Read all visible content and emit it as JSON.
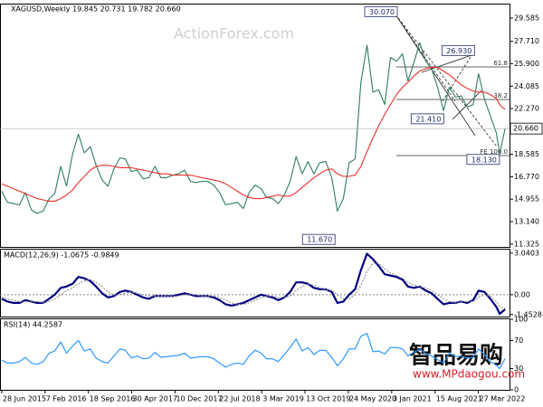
{
  "chart_data": [
    {
      "type": "line",
      "title": "XAGUSD,Weekly  19.845 20.731 19.782 20.660",
      "watermark": "ActionForex.com",
      "x": [
        "2015-06-28",
        "2015-07-28",
        "2015-08-28",
        "2015-09-28",
        "2015-10-28",
        "2015-11-28",
        "2015-12-28",
        "2016-01-28",
        "2016-02-28",
        "2016-03-28",
        "2016-04-28",
        "2016-05-28",
        "2016-06-28",
        "2016-07-28",
        "2016-08-28",
        "2016-09-28",
        "2016-10-28",
        "2016-11-28",
        "2016-12-28",
        "2017-01-28",
        "2017-02-28",
        "2017-03-28",
        "2017-04-28",
        "2017-05-28",
        "2017-06-28",
        "2017-07-28",
        "2017-08-28",
        "2017-09-28",
        "2017-10-28",
        "2017-11-28",
        "2017-12-28",
        "2018-01-28",
        "2018-02-28",
        "2018-03-28",
        "2018-04-28",
        "2018-05-28",
        "2018-06-28",
        "2018-07-28",
        "2018-08-28",
        "2018-09-28",
        "2018-10-28",
        "2018-11-28",
        "2018-12-28",
        "2019-01-28",
        "2019-02-28",
        "2019-03-28",
        "2019-04-28",
        "2019-05-28",
        "2019-06-28",
        "2019-07-28",
        "2019-08-28",
        "2019-09-28",
        "2019-10-28",
        "2019-11-28",
        "2019-12-28",
        "2020-01-28",
        "2020-02-28",
        "2020-03-28",
        "2020-04-28",
        "2020-05-28",
        "2020-06-28",
        "2020-07-28",
        "2020-08-28",
        "2020-09-28",
        "2020-10-28",
        "2020-11-28",
        "2020-12-28",
        "2021-01-28",
        "2021-02-28",
        "2021-03-28",
        "2021-04-28",
        "2021-05-28",
        "2021-06-28",
        "2021-07-28",
        "2021-08-28",
        "2021-09-28",
        "2021-10-28",
        "2021-11-28",
        "2021-12-28",
        "2022-01-28",
        "2022-02-28",
        "2022-03-28",
        "2022-04-28",
        "2022-05-28",
        "2022-06-28",
        "2022-07-15",
        "2022-08-12"
      ],
      "series": [
        {
          "color": "#2e7d5b",
          "values": [
            15.6,
            14.7,
            14.6,
            14.5,
            15.5,
            14.1,
            13.8,
            14.0,
            15.0,
            15.4,
            17.6,
            16.0,
            18.6,
            20.2,
            18.7,
            19.2,
            17.7,
            16.5,
            16.0,
            17.4,
            18.3,
            18.2,
            17.2,
            17.3,
            16.6,
            16.7,
            17.6,
            16.7,
            16.7,
            16.9,
            17.0,
            17.3,
            16.4,
            16.3,
            16.4,
            16.4,
            16.1,
            15.5,
            14.5,
            14.6,
            14.7,
            14.2,
            15.5,
            16.1,
            15.8,
            15.1,
            15.0,
            14.6,
            15.3,
            16.4,
            18.4,
            17.0,
            18.0,
            17.0,
            17.9,
            18.0,
            16.7,
            14.0,
            15.0,
            17.9,
            18.2,
            24.4,
            27.4,
            23.6,
            23.8,
            22.6,
            26.4,
            26.1,
            26.7,
            24.5,
            26.0,
            27.6,
            26.1,
            25.5,
            24.0,
            22.1,
            24.0,
            23.2,
            23.3,
            22.4,
            22.6,
            25.1,
            23.0,
            21.7,
            20.3,
            18.6,
            20.66
          ]
        },
        {
          "color": "#e8302a",
          "values": [
            16.2,
            16.0,
            15.8,
            15.6,
            15.4,
            15.2,
            15.0,
            14.9,
            14.8,
            14.8,
            15.0,
            15.3,
            15.7,
            16.3,
            16.8,
            17.3,
            17.6,
            17.7,
            17.7,
            17.6,
            17.5,
            17.5,
            17.5,
            17.4,
            17.3,
            17.2,
            17.1,
            17.0,
            17.0,
            16.9,
            16.9,
            16.9,
            16.9,
            16.8,
            16.7,
            16.6,
            16.5,
            16.4,
            16.2,
            15.9,
            15.6,
            15.3,
            15.1,
            15.0,
            15.0,
            15.1,
            15.2,
            15.3,
            15.2,
            15.2,
            15.5,
            15.9,
            16.3,
            16.7,
            17.0,
            17.3,
            17.4,
            17.0,
            16.8,
            16.8,
            16.9,
            17.6,
            18.8,
            19.9,
            20.9,
            21.8,
            22.6,
            23.4,
            24.0,
            24.4,
            24.9,
            25.3,
            25.5,
            25.6,
            25.6,
            25.3,
            25.0,
            24.6,
            24.2,
            23.9,
            23.7,
            23.6,
            23.6,
            23.4,
            23.1,
            22.6,
            22.2
          ]
        }
      ],
      "xlim": [
        "2015-06-19",
        "2022-09-04"
      ],
      "ylim": [
        11.1,
        30.68
      ],
      "yticks": [
        29.585,
        {
          "value": 27.71,
          "label": "27.710"
        },
        {
          "value": 25.9,
          "label": "25.900"
        },
        24.085,
        {
          "value": 22.27,
          "label": "22.270"
        },
        18.585,
        {
          "value": 16.77,
          "label": "16.770"
        },
        14.955,
        {
          "value": 13.14,
          "label": "13.140"
        },
        11.325
      ],
      "current_price": {
        "value": 20.66,
        "label": "20.660"
      },
      "annotations": [
        {
          "x": "2021-02-01",
          "value": 30.07,
          "label": "30.070"
        },
        {
          "x": "2022-03-07",
          "value": 26.93,
          "label": "26.930"
        },
        {
          "x": "2021-09-29",
          "value": 21.41,
          "label": "21.410"
        },
        {
          "x": "2022-07-14",
          "value": 18.13,
          "label": "18.130"
        },
        {
          "x": "2020-03-16",
          "value": 11.67,
          "label": "11.670"
        }
      ],
      "fib_levels": [
        {
          "price": 25.64,
          "text": "61.8"
        },
        {
          "price": 23.01,
          "text": "38.2"
        },
        {
          "price": 18.48,
          "text": "FE 100.0"
        }
      ]
    },
    {
      "type": "line",
      "title": "MACD(12,26,9) -1.0675 -0.9849",
      "x": [
        "2015-06-28",
        "2015-07-28",
        "2015-08-28",
        "2015-09-28",
        "2015-10-28",
        "2015-11-28",
        "2015-12-28",
        "2016-01-28",
        "2016-02-28",
        "2016-03-28",
        "2016-04-28",
        "2016-05-28",
        "2016-06-28",
        "2016-07-28",
        "2016-08-28",
        "2016-09-28",
        "2016-10-28",
        "2016-11-28",
        "2016-12-28",
        "2017-01-28",
        "2017-02-28",
        "2017-03-28",
        "2017-04-28",
        "2017-05-28",
        "2017-06-28",
        "2017-07-28",
        "2017-08-28",
        "2017-09-28",
        "2017-10-28",
        "2017-11-28",
        "2017-12-28",
        "2018-01-28",
        "2018-02-28",
        "2018-03-28",
        "2018-04-28",
        "2018-05-28",
        "2018-06-28",
        "2018-07-28",
        "2018-08-28",
        "2018-09-28",
        "2018-10-28",
        "2018-11-28",
        "2018-12-28",
        "2019-01-28",
        "2019-02-28",
        "2019-03-28",
        "2019-04-28",
        "2019-05-28",
        "2019-06-28",
        "2019-07-28",
        "2019-08-28",
        "2019-09-28",
        "2019-10-28",
        "2019-11-28",
        "2019-12-28",
        "2020-01-28",
        "2020-02-28",
        "2020-03-28",
        "2020-04-28",
        "2020-05-28",
        "2020-06-28",
        "2020-07-28",
        "2020-08-28",
        "2020-09-28",
        "2020-10-28",
        "2020-11-28",
        "2020-12-28",
        "2021-01-28",
        "2021-02-28",
        "2021-03-28",
        "2021-04-28",
        "2021-05-28",
        "2021-06-28",
        "2021-07-28",
        "2021-08-28",
        "2021-09-28",
        "2021-10-28",
        "2021-11-28",
        "2021-12-28",
        "2022-01-28",
        "2022-02-28",
        "2022-03-28",
        "2022-04-28",
        "2022-05-28",
        "2022-06-28",
        "2022-07-15",
        "2022-08-12"
      ],
      "series": [
        {
          "color": "#000080",
          "values": [
            -0.3,
            -0.5,
            -0.6,
            -0.6,
            -0.4,
            -0.5,
            -0.6,
            -0.6,
            -0.3,
            0.0,
            0.5,
            0.6,
            0.8,
            1.3,
            1.2,
            1.0,
            0.6,
            0.1,
            -0.2,
            -0.1,
            0.2,
            0.3,
            0.2,
            0.0,
            -0.2,
            -0.3,
            -0.1,
            -0.1,
            -0.1,
            -0.1,
            0.0,
            0.1,
            0.0,
            -0.1,
            -0.1,
            -0.1,
            -0.2,
            -0.4,
            -0.7,
            -0.8,
            -0.7,
            -0.6,
            -0.4,
            -0.2,
            0.0,
            -0.1,
            -0.2,
            -0.4,
            -0.2,
            0.2,
            0.9,
            0.9,
            0.8,
            0.5,
            0.4,
            0.4,
            0.2,
            -0.6,
            -0.5,
            0.0,
            0.4,
            1.8,
            3.0,
            2.6,
            2.1,
            1.5,
            1.4,
            1.3,
            1.1,
            0.6,
            0.5,
            0.6,
            0.3,
            0.1,
            -0.3,
            -0.7,
            -0.6,
            -0.6,
            -0.5,
            -0.6,
            -0.4,
            0.3,
            0.2,
            -0.3,
            -0.9,
            -1.4,
            -1.0675
          ]
        },
        {
          "color": "#909090",
          "values": [
            -0.2,
            -0.3,
            -0.4,
            -0.5,
            -0.5,
            -0.5,
            -0.5,
            -0.6,
            -0.5,
            -0.3,
            0.0,
            0.3,
            0.5,
            0.8,
            1.0,
            1.1,
            0.9,
            0.6,
            0.2,
            0.0,
            0.0,
            0.1,
            0.2,
            0.1,
            0.0,
            -0.1,
            -0.1,
            -0.1,
            -0.1,
            -0.1,
            -0.1,
            0.0,
            0.0,
            0.0,
            -0.1,
            -0.1,
            -0.1,
            -0.2,
            -0.4,
            -0.6,
            -0.7,
            -0.7,
            -0.6,
            -0.4,
            -0.2,
            -0.1,
            -0.1,
            -0.2,
            -0.2,
            -0.1,
            0.3,
            0.6,
            0.8,
            0.7,
            0.5,
            0.4,
            0.3,
            0.0,
            -0.3,
            -0.3,
            0.0,
            0.7,
            1.7,
            2.3,
            2.3,
            1.9,
            1.6,
            1.4,
            1.2,
            0.9,
            0.7,
            0.6,
            0.5,
            0.3,
            0.0,
            -0.3,
            -0.5,
            -0.6,
            -0.5,
            -0.5,
            -0.5,
            -0.2,
            0.0,
            -0.1,
            -0.5,
            -0.9,
            -0.9849
          ]
        }
      ],
      "xlim": [
        "2015-06-19",
        "2022-09-04"
      ],
      "ylim": [
        -1.6,
        3.3
      ],
      "yticks": [
        3.0403,
        {
          "value": 0,
          "label": "0.00"
        },
        -1.4528
      ],
      "zero_line": true
    },
    {
      "type": "line",
      "title": "RSI(14) 44.2587",
      "x": [
        "2015-06-28",
        "2015-07-28",
        "2015-08-28",
        "2015-09-28",
        "2015-10-28",
        "2015-11-28",
        "2015-12-28",
        "2016-01-28",
        "2016-02-28",
        "2016-03-28",
        "2016-04-28",
        "2016-05-28",
        "2016-06-28",
        "2016-07-28",
        "2016-08-28",
        "2016-09-28",
        "2016-10-28",
        "2016-11-28",
        "2016-12-28",
        "2017-01-28",
        "2017-02-28",
        "2017-03-28",
        "2017-04-28",
        "2017-05-28",
        "2017-06-28",
        "2017-07-28",
        "2017-08-28",
        "2017-09-28",
        "2017-10-28",
        "2017-11-28",
        "2017-12-28",
        "2018-01-28",
        "2018-02-28",
        "2018-03-28",
        "2018-04-28",
        "2018-05-28",
        "2018-06-28",
        "2018-07-28",
        "2018-08-28",
        "2018-09-28",
        "2018-10-28",
        "2018-11-28",
        "2018-12-28",
        "2019-01-28",
        "2019-02-28",
        "2019-03-28",
        "2019-04-28",
        "2019-05-28",
        "2019-06-28",
        "2019-07-28",
        "2019-08-28",
        "2019-09-28",
        "2019-10-28",
        "2019-11-28",
        "2019-12-28",
        "2020-01-28",
        "2020-02-28",
        "2020-03-28",
        "2020-04-28",
        "2020-05-28",
        "2020-06-28",
        "2020-07-28",
        "2020-08-28",
        "2020-09-28",
        "2020-10-28",
        "2020-11-28",
        "2020-12-28",
        "2021-01-28",
        "2021-02-28",
        "2021-03-28",
        "2021-04-28",
        "2021-05-28",
        "2021-06-28",
        "2021-07-28",
        "2021-08-28",
        "2021-09-28",
        "2021-10-28",
        "2021-11-28",
        "2021-12-28",
        "2022-01-28",
        "2022-02-28",
        "2022-03-28",
        "2022-04-28",
        "2022-05-28",
        "2022-06-28",
        "2022-07-15",
        "2022-08-12"
      ],
      "series": [
        {
          "color": "#1e90ff",
          "values": [
            42,
            38,
            38,
            40,
            46,
            38,
            36,
            40,
            52,
            55,
            68,
            52,
            62,
            70,
            55,
            58,
            45,
            40,
            38,
            48,
            58,
            56,
            45,
            48,
            44,
            45,
            53,
            46,
            47,
            48,
            49,
            52,
            45,
            46,
            47,
            47,
            44,
            38,
            32,
            36,
            38,
            36,
            48,
            56,
            52,
            44,
            44,
            40,
            50,
            60,
            72,
            55,
            60,
            50,
            56,
            56,
            46,
            34,
            44,
            58,
            58,
            76,
            80,
            54,
            55,
            51,
            60,
            60,
            58,
            48,
            53,
            58,
            51,
            48,
            43,
            38,
            52,
            47,
            48,
            45,
            46,
            58,
            50,
            40,
            35,
            30,
            44.2587
          ]
        }
      ],
      "xlim": [
        "2015-06-19",
        "2022-09-04"
      ],
      "ylim": [
        0,
        100
      ],
      "yticks": [
        100,
        70,
        30,
        0
      ],
      "xticks": [
        {
          "value": "2015-06-28",
          "label": "28 Jun 2015"
        },
        {
          "value": "2016-02-07",
          "label": "7 Feb 2016"
        },
        {
          "value": "2016-09-18",
          "label": "18 Sep 2016"
        },
        {
          "value": "2017-04-30",
          "label": "30 Apr 2017"
        },
        {
          "value": "2017-12-10",
          "label": "10 Dec 2017"
        },
        {
          "value": "2018-07-22",
          "label": "22 Jul 2018"
        },
        {
          "value": "2019-03-03",
          "label": "3 Mar 2019"
        },
        {
          "value": "2019-10-13",
          "label": "13 Oct 2019"
        },
        {
          "value": "2020-05-24",
          "label": "24 May 2020"
        },
        {
          "value": "2021-01-03",
          "label": "3 Jan 2021"
        },
        {
          "value": "2021-08-15",
          "label": "15 Aug 2021"
        },
        {
          "value": "2022-03-27",
          "label": "27 Mar 2022"
        }
      ],
      "watermark": {
        "brand": "智品易购",
        "url": "www.MPdaogou.com"
      }
    }
  ]
}
